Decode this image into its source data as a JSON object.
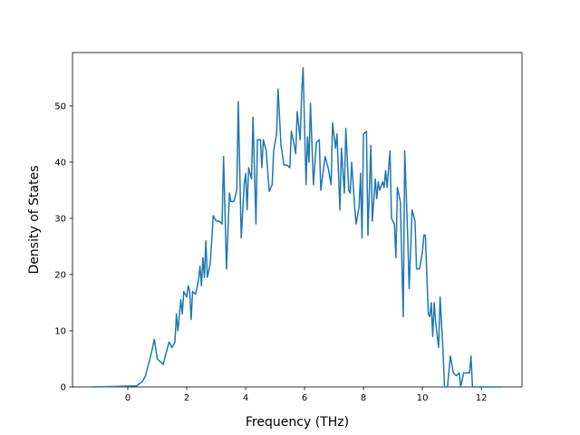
{
  "chart_data": {
    "type": "line",
    "xlabel": "Frequency (THz)",
    "ylabel": "Density of States",
    "color": "#1f77b4",
    "xlim": [
      -1.877,
      13.38
    ],
    "ylim": [
      0,
      59.5
    ],
    "xticks": [
      0,
      2,
      4,
      6,
      8,
      10,
      12
    ],
    "yticks": [
      0,
      10,
      20,
      30,
      40,
      50
    ],
    "x": [
      -1.2,
      0.3,
      0.5,
      0.6,
      0.7,
      0.8,
      0.9,
      1.0,
      1.1,
      1.2,
      1.3,
      1.4,
      1.5,
      1.6,
      1.65,
      1.7,
      1.8,
      1.85,
      1.9,
      2.0,
      2.05,
      2.1,
      2.15,
      2.2,
      2.3,
      2.4,
      2.45,
      2.5,
      2.55,
      2.6,
      2.65,
      2.7,
      2.8,
      2.9,
      3.0,
      3.1,
      3.2,
      3.25,
      3.35,
      3.45,
      3.5,
      3.6,
      3.7,
      3.75,
      3.85,
      3.95,
      4.0,
      4.05,
      4.1,
      4.2,
      4.25,
      4.35,
      4.4,
      4.5,
      4.55,
      4.6,
      4.7,
      4.8,
      4.9,
      4.95,
      5.05,
      5.1,
      5.2,
      5.3,
      5.4,
      5.5,
      5.55,
      5.65,
      5.7,
      5.75,
      5.85,
      5.9,
      5.95,
      6.05,
      6.1,
      6.15,
      6.2,
      6.3,
      6.4,
      6.5,
      6.55,
      6.65,
      6.7,
      6.8,
      6.9,
      6.95,
      7.05,
      7.1,
      7.2,
      7.25,
      7.35,
      7.4,
      7.5,
      7.55,
      7.6,
      7.7,
      7.75,
      7.85,
      7.9,
      7.95,
      8.0,
      8.1,
      8.15,
      8.25,
      8.3,
      8.4,
      8.45,
      8.5,
      8.55,
      8.65,
      8.7,
      8.75,
      8.8,
      8.9,
      8.95,
      9.05,
      9.1,
      9.15,
      9.25,
      9.35,
      9.4,
      9.5,
      9.55,
      9.65,
      9.75,
      9.8,
      9.9,
      10.0,
      10.05,
      10.1,
      10.2,
      10.25,
      10.3,
      10.35,
      10.4,
      10.45,
      10.55,
      10.6,
      10.7,
      10.75,
      10.85,
      10.95,
      11.05,
      11.15,
      11.25,
      11.3,
      11.4,
      11.5,
      11.6,
      11.65,
      11.7,
      12.0,
      12.7
    ],
    "values": [
      0,
      0.2,
      1,
      2,
      4,
      6,
      8.5,
      5,
      4.5,
      4,
      6,
      8,
      7,
      8,
      13,
      10,
      15.5,
      13,
      17,
      16,
      18,
      17,
      12,
      17,
      16.5,
      19,
      21.5,
      18,
      23,
      19.5,
      26,
      19.5,
      22,
      30.5,
      29.5,
      29.5,
      29,
      41,
      21,
      34.5,
      33,
      33,
      35,
      50.8,
      26.5,
      36,
      38,
      31.5,
      39,
      37,
      48,
      29,
      44,
      44,
      39,
      44,
      42,
      34.8,
      36,
      42,
      45,
      53,
      43,
      39.5,
      39.5,
      39,
      45.5,
      43,
      41.5,
      49,
      44,
      52,
      56.8,
      36,
      44.5,
      40,
      50.5,
      36,
      43.5,
      44,
      35,
      39,
      41,
      39,
      36,
      47,
      42.5,
      45,
      31.5,
      42.5,
      34.5,
      46,
      35,
      34.5,
      40,
      32,
      29,
      32,
      38,
      26.5,
      45,
      45.5,
      27,
      43,
      29.5,
      37,
      33.5,
      36.5,
      35,
      36.5,
      35.5,
      38.5,
      35.5,
      42,
      30,
      29,
      23,
      35.5,
      33,
      12.5,
      42,
      27,
      17.5,
      31.5,
      29.5,
      21,
      21,
      24,
      27,
      27,
      13,
      12.5,
      15,
      9,
      15,
      11.5,
      7,
      16,
      6.5,
      0,
      0,
      5.5,
      2.5,
      2,
      2.5,
      0,
      2.5,
      2.5,
      2.5,
      5.5,
      0,
      0,
      0
    ]
  }
}
